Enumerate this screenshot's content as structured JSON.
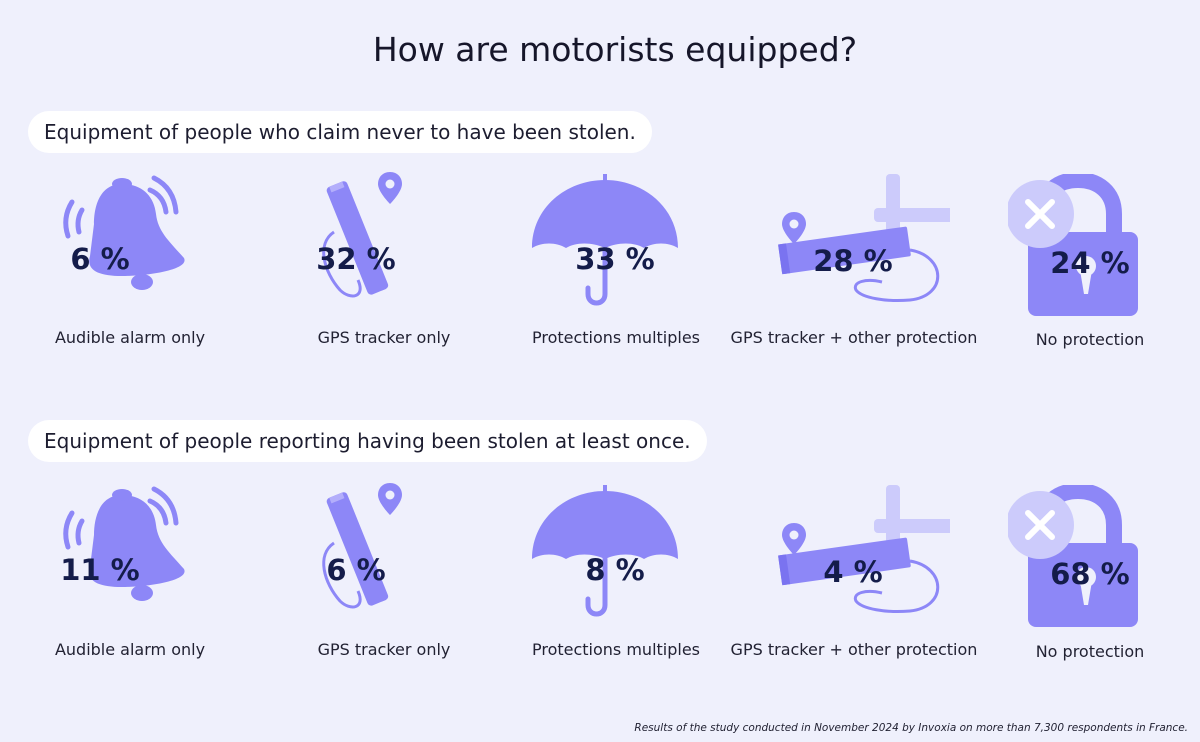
{
  "title": "How are motorists equipped?",
  "colors": {
    "background": "#eff0fc",
    "icon_primary": "#8d87f7",
    "icon_light": "#cccbfb",
    "value_text": "#141c4a"
  },
  "sections": [
    {
      "heading": "Equipment of people who claim never to have been stolen.",
      "items": [
        {
          "icon": "bell-icon",
          "value": "6 %",
          "label": "Audible alarm only"
        },
        {
          "icon": "gps-tracker-icon",
          "value": "32 %",
          "label": "GPS tracker only"
        },
        {
          "icon": "umbrella-icon",
          "value": "33 %",
          "label": "Protections multiples"
        },
        {
          "icon": "gps-tracker-plus-icon",
          "value": "28 %",
          "label": "GPS tracker + other protection"
        },
        {
          "icon": "padlock-cross-icon",
          "value": "24 %",
          "label": "No protection"
        }
      ]
    },
    {
      "heading": "Equipment of people reporting having been stolen at least once.",
      "items": [
        {
          "icon": "bell-icon",
          "value": "11 %",
          "label": "Audible alarm only"
        },
        {
          "icon": "gps-tracker-icon",
          "value": "6 %",
          "label": "GPS tracker only"
        },
        {
          "icon": "umbrella-icon",
          "value": "8 %",
          "label": "Protections multiples"
        },
        {
          "icon": "gps-tracker-plus-icon",
          "value": "4 %",
          "label": "GPS tracker + other protection"
        },
        {
          "icon": "padlock-cross-icon",
          "value": "68 %",
          "label": "No protection"
        }
      ]
    }
  ],
  "chart_data": [
    {
      "type": "table",
      "title": "Equipment of people who claim never to have been stolen.",
      "categories": [
        "Audible alarm only",
        "GPS tracker only",
        "Protections multiples",
        "GPS tracker + other protection",
        "No protection"
      ],
      "values": [
        6,
        32,
        33,
        28,
        24
      ]
    },
    {
      "type": "table",
      "title": "Equipment of people reporting having been stolen at least once.",
      "categories": [
        "Audible alarm only",
        "GPS tracker only",
        "Protections multiples",
        "GPS tracker + other protection",
        "No protection"
      ],
      "values": [
        11,
        6,
        8,
        4,
        68
      ]
    }
  ],
  "footnote": "Results of the study conducted in November 2024 by Invoxia on more than 7,300 respondents in France."
}
